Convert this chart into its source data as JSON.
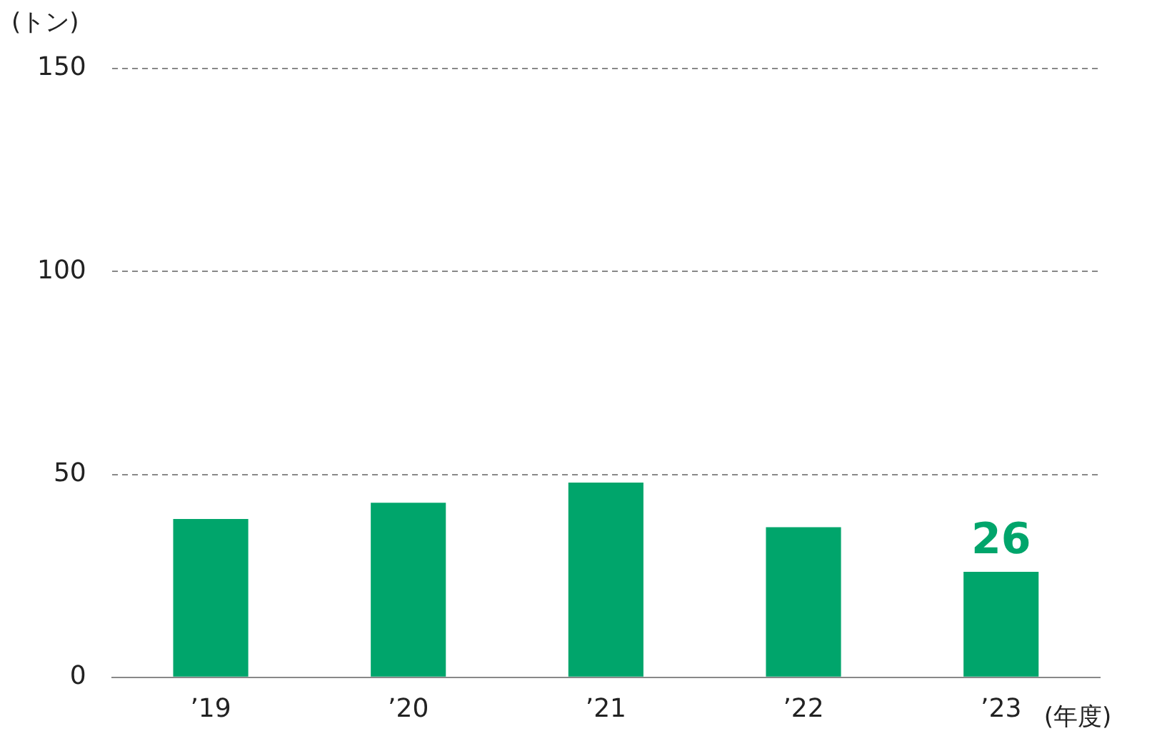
{
  "chart_data": {
    "type": "bar",
    "ylabel": "(トン)",
    "xlabel": "(年度)",
    "categories": [
      "’19",
      "’20",
      "’21",
      "’22",
      "’23"
    ],
    "values": [
      39,
      43,
      48,
      37,
      26
    ],
    "color": "#00a56b",
    "value_labels": [
      null,
      null,
      null,
      null,
      "26"
    ],
    "ylim": [
      0,
      150
    ],
    "yticks": [
      0,
      50,
      100,
      150
    ],
    "grid": "y"
  }
}
